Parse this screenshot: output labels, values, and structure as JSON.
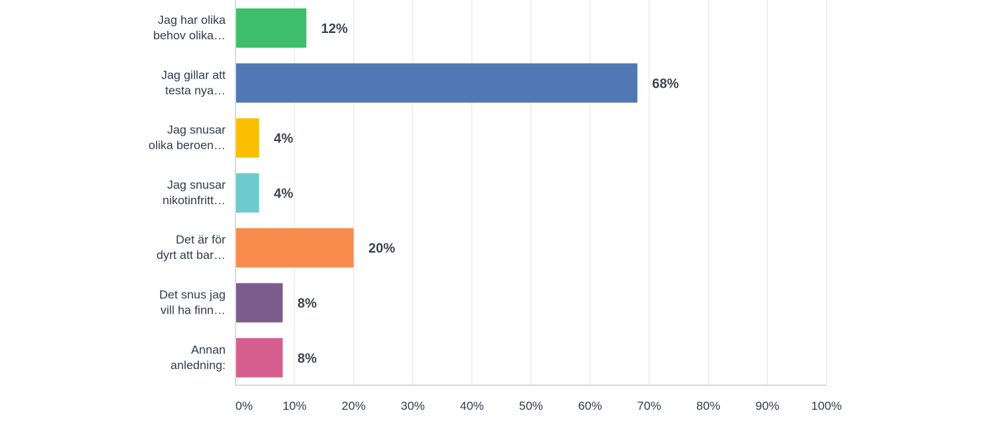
{
  "chart_data": {
    "type": "bar",
    "orientation": "horizontal",
    "categories": [
      [
        "Jag har olika",
        "behov olika…"
      ],
      [
        "Jag gillar att",
        "testa nya…"
      ],
      [
        "Jag snusar",
        "olika beroen…"
      ],
      [
        "Jag snusar",
        "nikotinfritt…"
      ],
      [
        "Det är för",
        "dyrt att bar…"
      ],
      [
        "Det snus jag",
        "vill ha finn…"
      ],
      [
        "Annan",
        "anledning:"
      ]
    ],
    "values": [
      12,
      68,
      4,
      4,
      20,
      8,
      8
    ],
    "value_labels": [
      "12%",
      "68%",
      "4%",
      "4%",
      "20%",
      "8%",
      "8%"
    ],
    "colors": [
      "#3fbf6c",
      "#4f78b4",
      "#f9be00",
      "#6ccbcd",
      "#f78c4c",
      "#7c5c8f",
      "#d55e8e"
    ],
    "x_ticks": [
      "0%",
      "10%",
      "20%",
      "30%",
      "40%",
      "50%",
      "60%",
      "70%",
      "80%",
      "90%",
      "100%"
    ],
    "xlim": [
      0,
      100
    ],
    "grid": true,
    "legend": "none"
  }
}
